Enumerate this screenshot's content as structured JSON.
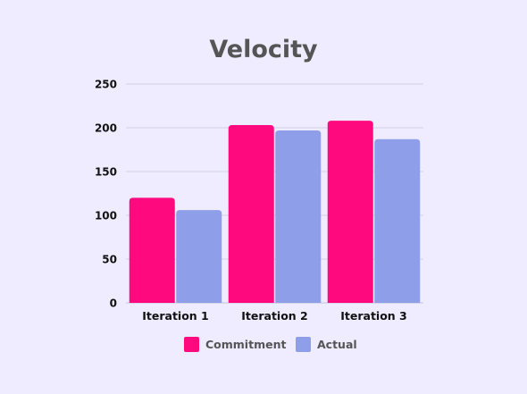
{
  "chart_data": {
    "type": "bar",
    "title": "Velocity",
    "categories": [
      "Iteration 1",
      "Iteration 2",
      "Iteration 3"
    ],
    "series": [
      {
        "name": "Commitment",
        "color": "#ff0a7e",
        "values": [
          120,
          203,
          208
        ]
      },
      {
        "name": "Actual",
        "color": "#8f9ee9",
        "values": [
          106,
          197,
          187
        ]
      }
    ],
    "ylim": [
      0,
      250
    ],
    "yticks": [
      "0",
      "50",
      "100",
      "150",
      "200",
      "250"
    ],
    "grid": true,
    "legend_position": "bottom"
  }
}
